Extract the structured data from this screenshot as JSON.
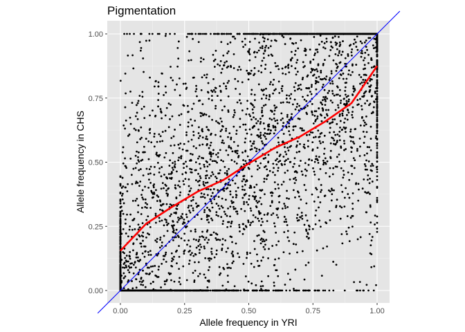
{
  "chart_data": {
    "type": "scatter",
    "title": "Pigmentation",
    "xlabel": "Allele frequency in YRI",
    "ylabel": "Allele frequency in CHS",
    "xlim": [
      -0.05,
      1.05
    ],
    "ylim": [
      -0.04,
      1.04
    ],
    "x_ticks": [
      0.0,
      0.25,
      0.5,
      0.75,
      1.0
    ],
    "y_ticks": [
      0.0,
      0.25,
      0.5,
      0.75,
      1.0
    ],
    "x_tick_labels": [
      "0.00",
      "0.25",
      "0.50",
      "0.75",
      "1.00"
    ],
    "y_tick_labels": [
      "0.00",
      "0.25",
      "0.50",
      "0.75",
      "1.00"
    ],
    "grid": true,
    "background": "#e5e5e5",
    "point_color": "#000000",
    "point_count_estimate": 4000,
    "reference_line": {
      "slope": 1,
      "intercept": 0,
      "color": "#0000ff"
    },
    "smooth_line": {
      "color": "#ff0000",
      "x": [
        0.0,
        0.1,
        0.2,
        0.3,
        0.4,
        0.5,
        0.6,
        0.7,
        0.8,
        0.9,
        1.0
      ],
      "y": [
        0.155,
        0.26,
        0.325,
        0.385,
        0.43,
        0.495,
        0.555,
        0.6,
        0.66,
        0.73,
        0.875
      ]
    }
  }
}
